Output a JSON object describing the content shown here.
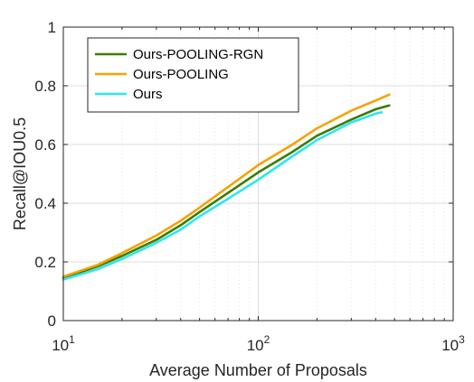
{
  "chart_data": {
    "type": "line",
    "title": "",
    "xlabel": "Average Number of Proposals",
    "ylabel": "Recall@IOU0.5",
    "xscale": "log",
    "xlim": [
      10,
      1000
    ],
    "ylim": [
      0,
      1
    ],
    "x_ticks": [
      {
        "value": 10,
        "base": "10",
        "exp": "1"
      },
      {
        "value": 100,
        "base": "10",
        "exp": "2"
      },
      {
        "value": 1000,
        "base": "10",
        "exp": "3"
      }
    ],
    "y_ticks": [
      {
        "value": 0,
        "label": "0"
      },
      {
        "value": 0.2,
        "label": "0.2"
      },
      {
        "value": 0.4,
        "label": "0.4"
      },
      {
        "value": 0.6,
        "label": "0.6"
      },
      {
        "value": 0.8,
        "label": "0.8"
      },
      {
        "value": 1,
        "label": "1"
      }
    ],
    "grid": true,
    "legend_position": "top-left",
    "series": [
      {
        "name": "Ours-POOLING-RGN",
        "color": "#3a7d00",
        "points": [
          [
            10,
            0.145
          ],
          [
            15,
            0.185
          ],
          [
            20,
            0.22
          ],
          [
            30,
            0.275
          ],
          [
            40,
            0.325
          ],
          [
            50,
            0.37
          ],
          [
            70,
            0.435
          ],
          [
            100,
            0.505
          ],
          [
            150,
            0.575
          ],
          [
            200,
            0.63
          ],
          [
            300,
            0.685
          ],
          [
            400,
            0.72
          ],
          [
            470,
            0.733
          ]
        ]
      },
      {
        "name": "Ours-POOLING",
        "color": "#f5a300",
        "points": [
          [
            10,
            0.15
          ],
          [
            15,
            0.19
          ],
          [
            20,
            0.23
          ],
          [
            30,
            0.29
          ],
          [
            40,
            0.34
          ],
          [
            50,
            0.385
          ],
          [
            70,
            0.455
          ],
          [
            100,
            0.53
          ],
          [
            150,
            0.6
          ],
          [
            200,
            0.655
          ],
          [
            300,
            0.715
          ],
          [
            400,
            0.75
          ],
          [
            470,
            0.77
          ]
        ]
      },
      {
        "name": "Ours",
        "color": "#2ee6f0",
        "points": [
          [
            10,
            0.14
          ],
          [
            15,
            0.175
          ],
          [
            20,
            0.21
          ],
          [
            30,
            0.265
          ],
          [
            40,
            0.31
          ],
          [
            50,
            0.355
          ],
          [
            70,
            0.415
          ],
          [
            100,
            0.48
          ],
          [
            150,
            0.56
          ],
          [
            200,
            0.615
          ],
          [
            300,
            0.675
          ],
          [
            400,
            0.705
          ],
          [
            430,
            0.71
          ]
        ]
      }
    ]
  }
}
